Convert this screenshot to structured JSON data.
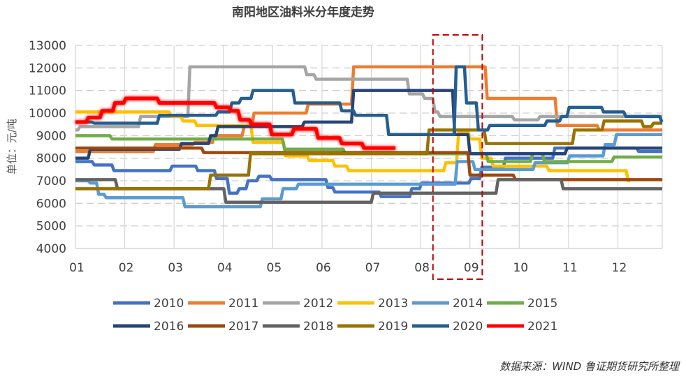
{
  "chart_data": {
    "type": "line",
    "title": "南阳地区油料米分年度走势",
    "ylabel": "单位：元/吨",
    "xlabel": "",
    "source": "数据来源：WIND  鲁证期货研究所整理",
    "x_tick_labels": [
      "01",
      "02",
      "03",
      "04",
      "05",
      "06",
      "07",
      "08",
      "09",
      "10",
      "11",
      "12"
    ],
    "y_ticks": [
      4000,
      5000,
      6000,
      7000,
      8000,
      9000,
      10000,
      11000,
      12000,
      13000
    ],
    "ylim": [
      4000,
      13000
    ],
    "xlim_month": [
      1,
      12.9
    ],
    "grid": true,
    "legend_position": "bottom",
    "highlight_month_range": [
      8.25,
      9.25
    ],
    "highlight_color": "#c00000",
    "series": [
      {
        "name": "2010",
        "color": "#4472c4",
        "end": 12.9,
        "steps": [
          [
            1,
            7850
          ],
          [
            1.36,
            7700
          ],
          [
            1.76,
            7450
          ],
          [
            2.94,
            7650
          ],
          [
            3.46,
            7450
          ],
          [
            3.84,
            7100
          ],
          [
            4.1,
            6450
          ],
          [
            4.3,
            6650
          ],
          [
            4.48,
            7000
          ],
          [
            4.7,
            7200
          ],
          [
            4.96,
            7050
          ],
          [
            6.1,
            6700
          ],
          [
            6.24,
            6500
          ],
          [
            7.18,
            6300
          ],
          [
            7.8,
            6650
          ],
          [
            8.0,
            6900
          ],
          [
            9.0,
            7100
          ],
          [
            9.22,
            7600
          ],
          [
            9.7,
            8000
          ],
          [
            10.7,
            8450
          ],
          [
            12.4,
            8300
          ]
        ]
      },
      {
        "name": "2011",
        "color": "#ed7d31",
        "end": 12.9,
        "steps": [
          [
            1,
            8300
          ],
          [
            2.6,
            8600
          ],
          [
            3.4,
            8700
          ],
          [
            3.8,
            9000
          ],
          [
            4.4,
            9400
          ],
          [
            4.6,
            10000
          ],
          [
            5.7,
            10400
          ],
          [
            6.62,
            12050
          ],
          [
            9.33,
            10650
          ],
          [
            10.75,
            9450
          ],
          [
            11.6,
            9250
          ]
        ]
      },
      {
        "name": "2012",
        "color": "#a5a5a5",
        "end": 12.9,
        "steps": [
          [
            1,
            9250
          ],
          [
            1.07,
            9400
          ],
          [
            2.3,
            9850
          ],
          [
            3.3,
            12050
          ],
          [
            5.67,
            11700
          ],
          [
            5.86,
            11500
          ],
          [
            7.75,
            10850
          ],
          [
            8.06,
            10650
          ],
          [
            8.27,
            10050
          ],
          [
            8.37,
            9850
          ],
          [
            9.88,
            9700
          ],
          [
            10.4,
            9850
          ]
        ]
      },
      {
        "name": "2013",
        "color": "#ffc000",
        "end": 12.25,
        "steps": [
          [
            1,
            10050
          ],
          [
            2.92,
            9850
          ],
          [
            3.16,
            9650
          ],
          [
            3.44,
            9450
          ],
          [
            4.58,
            8700
          ],
          [
            5.24,
            8100
          ],
          [
            5.72,
            7900
          ],
          [
            6.24,
            7650
          ],
          [
            6.52,
            7450
          ],
          [
            8.49,
            7800
          ],
          [
            8.75,
            9150
          ],
          [
            8.98,
            8850
          ],
          [
            9.22,
            8000
          ],
          [
            9.45,
            7650
          ],
          [
            10.58,
            7450
          ],
          [
            12.19,
            7000
          ]
        ]
      },
      {
        "name": "2014",
        "color": "#5b9bd5",
        "end": 12.9,
        "steps": [
          [
            1,
            7000
          ],
          [
            1.28,
            6900
          ],
          [
            1.45,
            6400
          ],
          [
            1.6,
            6250
          ],
          [
            3.2,
            5850
          ],
          [
            4.77,
            6200
          ],
          [
            5.19,
            6650
          ],
          [
            5.5,
            6850
          ],
          [
            8.72,
            7850
          ],
          [
            9.08,
            7500
          ],
          [
            10.3,
            7800
          ],
          [
            11.0,
            8100
          ],
          [
            11.72,
            8600
          ],
          [
            11.95,
            9050
          ]
        ]
      },
      {
        "name": "2015",
        "color": "#70ad47",
        "end": 12.9,
        "steps": [
          [
            1,
            9000
          ],
          [
            1.72,
            8850
          ],
          [
            5.22,
            8400
          ],
          [
            6.45,
            8200
          ],
          [
            9.35,
            7850
          ],
          [
            10.25,
            8200
          ],
          [
            10.49,
            7850
          ],
          [
            11.9,
            8050
          ]
        ]
      },
      {
        "name": "2016",
        "color": "#264478",
        "end": 12.9,
        "steps": [
          [
            1,
            8000
          ],
          [
            1.28,
            8400
          ],
          [
            3.13,
            8650
          ],
          [
            3.72,
            9000
          ],
          [
            3.87,
            9400
          ],
          [
            5.62,
            9600
          ],
          [
            6.62,
            11000
          ],
          [
            8.67,
            9050
          ],
          [
            8.98,
            8200
          ],
          [
            10.95,
            8450
          ]
        ]
      },
      {
        "name": "2017",
        "color": "#9e480e",
        "end": 12.9,
        "steps": [
          [
            1,
            8450
          ],
          [
            3.58,
            8250
          ],
          [
            8.98,
            7250
          ],
          [
            9.9,
            7050
          ]
        ]
      },
      {
        "name": "2018",
        "color": "#636363",
        "end": 12.9,
        "steps": [
          [
            1,
            7050
          ],
          [
            1.83,
            6650
          ],
          [
            4.03,
            6050
          ],
          [
            7.02,
            6450
          ],
          [
            9.55,
            7050
          ],
          [
            10.87,
            6650
          ]
        ]
      },
      {
        "name": "2019",
        "color": "#997300",
        "end": 12.9,
        "steps": [
          [
            1,
            6650
          ],
          [
            3.72,
            7250
          ],
          [
            4.53,
            8200
          ],
          [
            8.15,
            9250
          ],
          [
            9.31,
            8650
          ],
          [
            11.1,
            9250
          ],
          [
            11.7,
            9650
          ],
          [
            12.5,
            9400
          ],
          [
            12.7,
            9550
          ]
        ]
      },
      {
        "name": "2020",
        "color": "#255e91",
        "end": 12.9,
        "steps": [
          [
            1,
            9600
          ],
          [
            1.36,
            9550
          ],
          [
            2.68,
            9900
          ],
          [
            3.87,
            10050
          ],
          [
            4.15,
            10450
          ],
          [
            4.34,
            10650
          ],
          [
            4.58,
            11000
          ],
          [
            5.43,
            10450
          ],
          [
            6.38,
            10100
          ],
          [
            6.66,
            9900
          ],
          [
            7.33,
            9050
          ],
          [
            8.7,
            12050
          ],
          [
            8.91,
            10450
          ],
          [
            9.15,
            9250
          ],
          [
            9.38,
            9450
          ],
          [
            10.54,
            9650
          ],
          [
            10.84,
            9850
          ],
          [
            10.99,
            10250
          ],
          [
            11.69,
            10050
          ],
          [
            12.14,
            9850
          ],
          [
            12.87,
            9600
          ]
        ]
      },
      {
        "name": "2021",
        "color": "#ff0000",
        "end": 7.49,
        "steps": [
          [
            1,
            9600
          ],
          [
            1.24,
            9800
          ],
          [
            1.52,
            10100
          ],
          [
            1.78,
            10450
          ],
          [
            2.0,
            10650
          ],
          [
            2.68,
            10450
          ],
          [
            3.84,
            10250
          ],
          [
            4.13,
            10100
          ],
          [
            4.32,
            9700
          ],
          [
            4.55,
            9500
          ],
          [
            4.96,
            9050
          ],
          [
            5.41,
            9300
          ],
          [
            5.9,
            8900
          ],
          [
            6.38,
            8650
          ],
          [
            6.83,
            8450
          ]
        ]
      }
    ]
  }
}
